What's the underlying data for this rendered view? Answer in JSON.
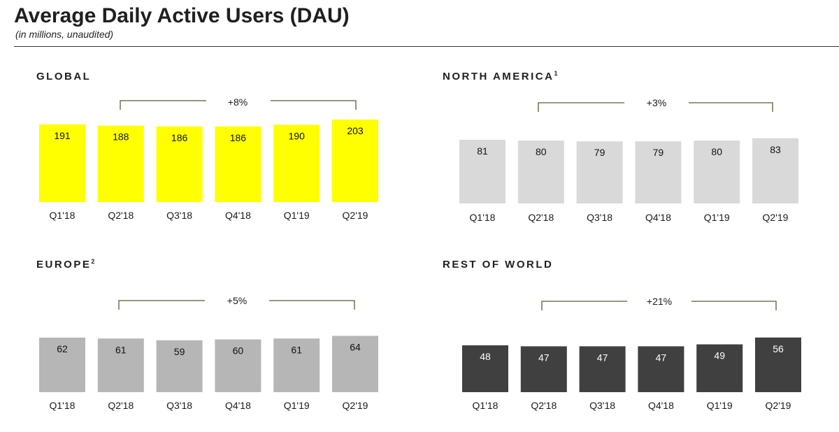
{
  "header": {
    "title": "Average Daily Active Users (DAU)",
    "subtitle": "(in millions, unaudited)"
  },
  "colors": {
    "global_bar": "#ffff00",
    "north_america_bar": "#d9d9d9",
    "europe_bar": "#b6b6b6",
    "rest_of_world_bar": "#404040",
    "bracket": "#5c5a35"
  },
  "chart_data": [
    {
      "type": "bar",
      "title": "GLOBAL",
      "footnote": "",
      "categories": [
        "Q1'18",
        "Q2'18",
        "Q3'18",
        "Q4'18",
        "Q1'19",
        "Q2'19"
      ],
      "values": [
        191,
        188,
        186,
        186,
        190,
        203
      ],
      "annotation": "+8%",
      "xlabel": "",
      "ylabel": "",
      "grid": false
    },
    {
      "type": "bar",
      "title": "NORTH AMERICA",
      "footnote": "1",
      "categories": [
        "Q1'18",
        "Q2'18",
        "Q3'18",
        "Q4'18",
        "Q1'19",
        "Q2'19"
      ],
      "values": [
        81,
        80,
        79,
        79,
        80,
        83
      ],
      "annotation": "+3%",
      "xlabel": "",
      "ylabel": "",
      "grid": false
    },
    {
      "type": "bar",
      "title": "EUROPE",
      "footnote": "2",
      "categories": [
        "Q1'18",
        "Q2'18",
        "Q3'18",
        "Q4'18",
        "Q1'19",
        "Q2'19"
      ],
      "values": [
        62,
        61,
        59,
        60,
        61,
        64
      ],
      "annotation": "+5%",
      "xlabel": "",
      "ylabel": "",
      "grid": false
    },
    {
      "type": "bar",
      "title": "REST OF WORLD",
      "footnote": "",
      "categories": [
        "Q1'18",
        "Q2'18",
        "Q3'18",
        "Q4'18",
        "Q1'19",
        "Q2'19"
      ],
      "values": [
        48,
        47,
        47,
        47,
        49,
        56
      ],
      "annotation": "+21%",
      "xlabel": "",
      "ylabel": "",
      "grid": false
    }
  ]
}
